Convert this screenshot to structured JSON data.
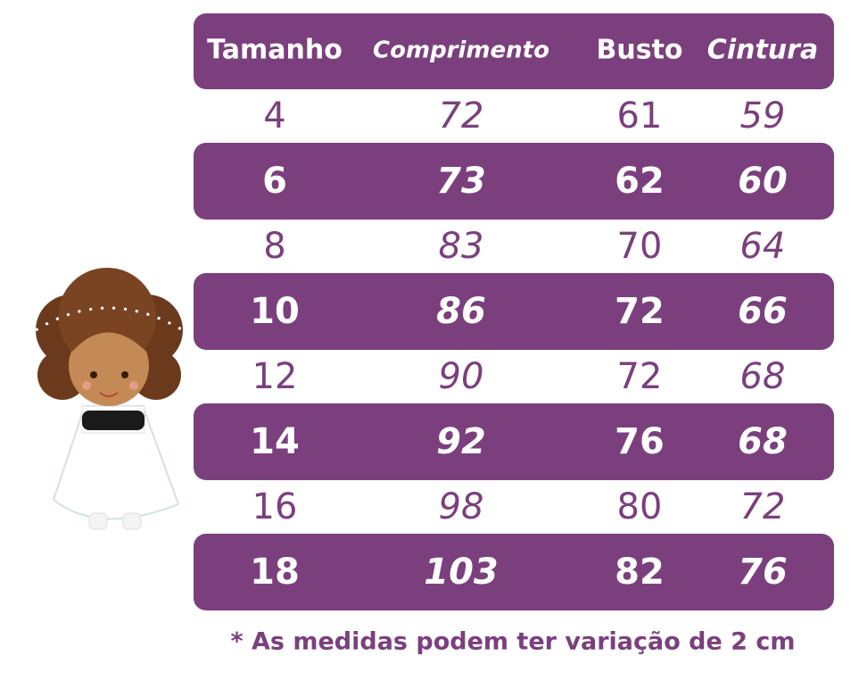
{
  "table": {
    "headers": [
      "Tamanho",
      "Comprimento",
      "Busto",
      "Cintura"
    ],
    "rows": [
      [
        4,
        72,
        61,
        59
      ],
      [
        6,
        73,
        62,
        60
      ],
      [
        8,
        83,
        70,
        64
      ],
      [
        10,
        86,
        72,
        66
      ],
      [
        12,
        90,
        72,
        68
      ],
      [
        14,
        92,
        76,
        68
      ],
      [
        16,
        98,
        80,
        72
      ],
      [
        18,
        103,
        82,
        76
      ]
    ]
  },
  "footnote": "* As medidas podem ter variação de 2 cm"
}
